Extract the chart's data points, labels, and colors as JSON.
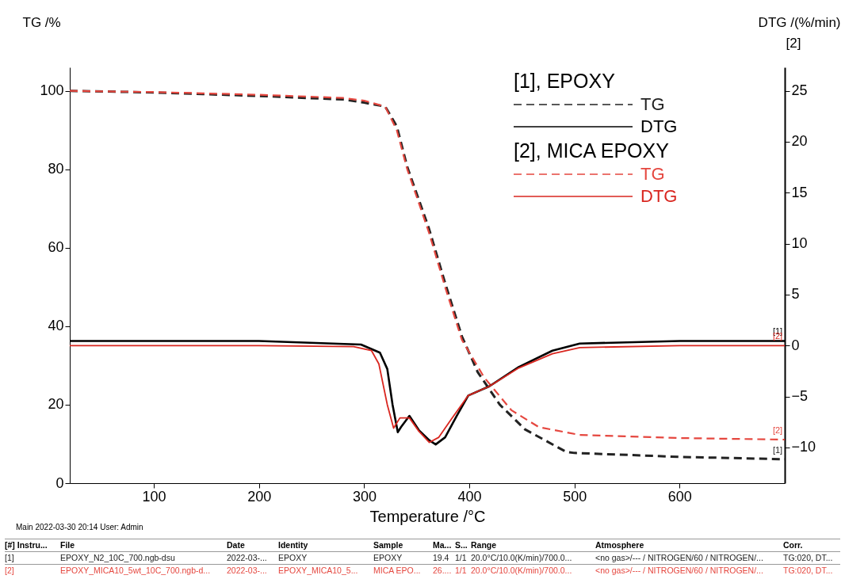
{
  "chart_data": {
    "type": "line",
    "xlabel": "Temperature /°C",
    "ylabel": "TG /%",
    "y2label": "DTG /(%/min)",
    "xlim": [
      20,
      700
    ],
    "xticks": [
      100,
      200,
      300,
      400,
      500,
      600
    ],
    "ylim": [
      0,
      106
    ],
    "yticks": [
      0,
      20,
      40,
      60,
      80,
      100
    ],
    "y2lim": [
      -13.5,
      27.3
    ],
    "y2ticks": [
      -10,
      -5,
      0,
      5,
      10,
      15,
      20,
      25
    ],
    "grid": false,
    "legend": "top right",
    "marker": "none",
    "series": [
      {
        "name": "TG",
        "color": "#222222",
        "line_style": "dashed",
        "x": [
          20,
          100,
          200,
          280,
          300,
          320,
          331,
          341,
          361.5,
          377,
          393,
          408,
          429,
          453,
          492,
          500,
          600,
          700
        ],
        "values": [
          100,
          99.6,
          98.7,
          97.8,
          97,
          96,
          91,
          80.6,
          65,
          51,
          37.4,
          28.3,
          20,
          13.7,
          8,
          7.7,
          6.7,
          6.1
        ]
      },
      {
        "name": "DTG",
        "color": "#000000",
        "line_style": "solid",
        "axis": "y2",
        "x": [
          20,
          200,
          297,
          315,
          322,
          327,
          332,
          335,
          343,
          352,
          362,
          368,
          377,
          388,
          399,
          419,
          447,
          479,
          505,
          600,
          700
        ],
        "values": [
          0.45,
          0.45,
          0.1,
          -0.7,
          -2.3,
          -5.8,
          -8.5,
          -8,
          -6.9,
          -8.3,
          -9.3,
          -9.7,
          -9,
          -6.9,
          -4.9,
          -4,
          -2.1,
          -0.5,
          0.2,
          0.45,
          0.45
        ]
      },
      {
        "name": "TG",
        "color": "#e5473f",
        "line_style": "dashed",
        "x": [
          20,
          100,
          200,
          280,
          300,
          320,
          331,
          341,
          361.5,
          377,
          393,
          414,
          440,
          466,
          505,
          600,
          700
        ],
        "values": [
          100,
          99.7,
          99,
          98.2,
          97.5,
          96,
          90,
          80,
          64,
          50,
          36.5,
          27,
          18.6,
          14.3,
          12.3,
          11.5,
          11.1
        ]
      },
      {
        "name": "DTG",
        "color": "#d9261f",
        "line_style": "solid",
        "axis": "y2",
        "x": [
          20,
          200,
          290,
          307,
          314,
          322,
          328,
          334,
          343,
          352,
          362,
          371,
          383,
          399,
          419,
          447,
          479,
          505,
          600,
          700
        ],
        "values": [
          0,
          0,
          -0.1,
          -0.5,
          -1.8,
          -5.8,
          -8.1,
          -7.1,
          -7.1,
          -8.4,
          -9.5,
          -9,
          -7.2,
          -4.9,
          -4,
          -2.2,
          -0.8,
          -0.2,
          0,
          0
        ]
      }
    ],
    "annotations": [
      "[1], EPOXY",
      "[2], MICA EPOXY",
      "[2]",
      "[1]",
      "[1]",
      "[2]",
      "[2]",
      "Main   2022-03-30 20:14   User: Admin",
      "[#] Instru...",
      "File",
      "Date",
      "Identity",
      "Sample",
      "Ma...",
      "S...",
      "Range",
      "Atmosphere",
      "Corr.",
      "[1]",
      "EPOXY_N2_10C_700.ngb-dsu",
      "2022-03-...",
      "EPOXY",
      "EPOXY",
      "19.4",
      "1/1",
      "20.0°C/10.0(K/min)/700.0...",
      "<no gas>/--- / NITROGEN/60 / NITROGEN/...",
      "TG:020, DT...",
      "[2]",
      "EPOXY_MICA10_5wt_10C_700.ngb-d...",
      "2022-03-...",
      "EPOXY_MICA10_5...",
      "MICA EPO...",
      "26....",
      "1/1",
      "20.0°C/10.0(K/min)/700.0...",
      "<no gas>/--- / NITROGEN/60 / NITROGEN/...",
      "TG:020, DT..."
    ]
  }
}
